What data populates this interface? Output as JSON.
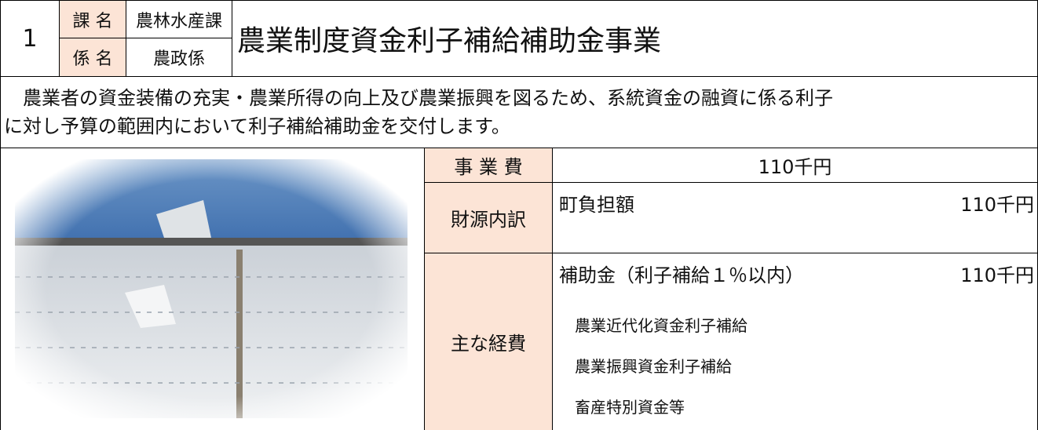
{
  "header": {
    "number": "1",
    "section_label": "課 名",
    "section": "農林水産課",
    "unit_label": "係 名",
    "unit": "農政係",
    "title": "農業制度資金利子補給補助金事業"
  },
  "description": {
    "lines": [
      "　農業者の資金装備の充実・農業所得の向上及び農業振興を図るため、系統資金の融資に係る利子",
      "に対し予算の範囲内において利子補給補助金を交付します。"
    ]
  },
  "budget": {
    "label": "事 業 費",
    "value": "110千円"
  },
  "funding": {
    "label": "財源内訳",
    "items": [
      {
        "name": "町負担額",
        "amount": "110千円"
      }
    ]
  },
  "expenses": {
    "label": "主な経費",
    "items": [
      {
        "name": "補助金（利子補給１％以内）",
        "amount": "110千円"
      }
    ],
    "details": [
      "農業近代化資金利子補給",
      "農業振興資金利子補給",
      "畜産特別資金等"
    ]
  }
}
